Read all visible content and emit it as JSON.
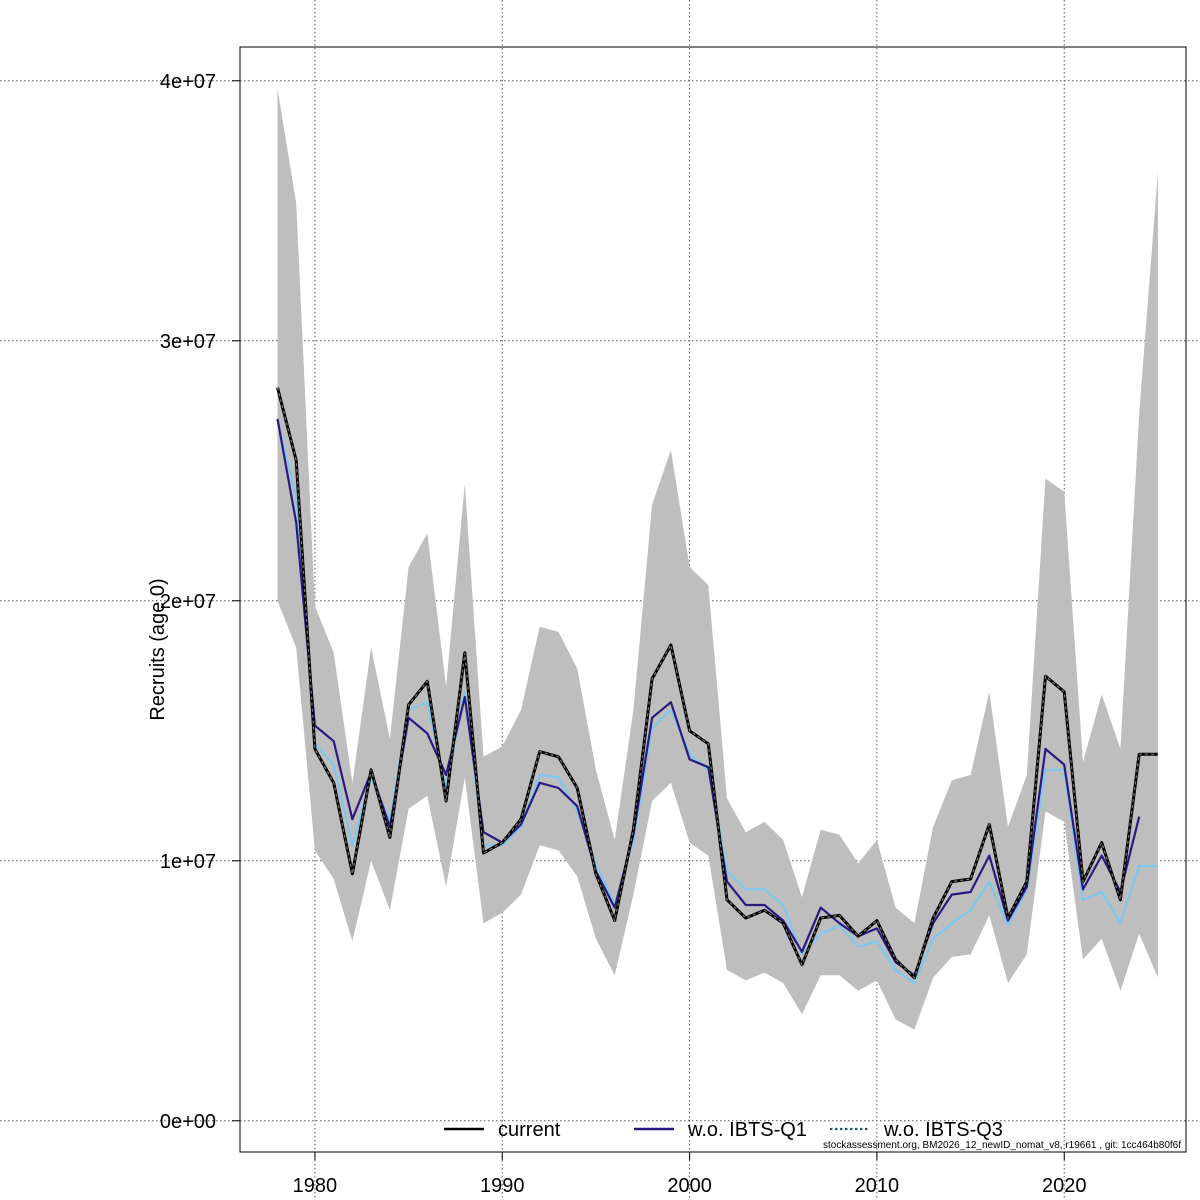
{
  "chart_data": {
    "type": "line",
    "ylabel": "Recruits (age 0)",
    "xlabel": "",
    "xlim": [
      1976,
      2026.5
    ],
    "ylim": [
      -1200000,
      41300000
    ],
    "x_ticks": [
      1980,
      1990,
      2000,
      2010,
      2020
    ],
    "y_ticks": [
      0,
      10000000,
      20000000,
      30000000,
      40000000
    ],
    "y_tick_labels": [
      "0e+00",
      "1e+07",
      "2e+07",
      "3e+07",
      "4e+07"
    ],
    "grid": true,
    "legend_position": "bottom",
    "footnote": "stockassessment.org, BM2026_12_newID_nomat_v8, r19661 , git: 1cc464b80f6f",
    "band": {
      "color": "#bebebe",
      "x": [
        1978,
        1979,
        1980,
        1981,
        1982,
        1983,
        1984,
        1985,
        1986,
        1987,
        1988,
        1989,
        1990,
        1991,
        1992,
        1993,
        1994,
        1995,
        1996,
        1997,
        1998,
        1999,
        2000,
        2001,
        2002,
        2003,
        2004,
        2005,
        2006,
        2007,
        2008,
        2009,
        2010,
        2011,
        2012,
        2013,
        2014,
        2015,
        2016,
        2017,
        2018,
        2019,
        2020,
        2021,
        2022,
        2023,
        2024,
        2025
      ],
      "upper": [
        39700000,
        35300000,
        19800000,
        18000000,
        13000000,
        18200000,
        14700000,
        21300000,
        22600000,
        16700000,
        24500000,
        14000000,
        14400000,
        15800000,
        19000000,
        18800000,
        17400000,
        13500000,
        10800000,
        15800000,
        23700000,
        25800000,
        21300000,
        20600000,
        12400000,
        11100000,
        11500000,
        10800000,
        8600000,
        11200000,
        11000000,
        9900000,
        10800000,
        8200000,
        7600000,
        11300000,
        13100000,
        13300000,
        16500000,
        11300000,
        13300000,
        24700000,
        24200000,
        13800000,
        16400000,
        14300000,
        27200000,
        36500000
      ],
      "lower": [
        20000000,
        18200000,
        10400000,
        9300000,
        6900000,
        10000000,
        8100000,
        12000000,
        12500000,
        9000000,
        13200000,
        7600000,
        8000000,
        8700000,
        10600000,
        10400000,
        9400000,
        7000000,
        5600000,
        8700000,
        12300000,
        13000000,
        10700000,
        10200000,
        5800000,
        5400000,
        5700000,
        5300000,
        4100000,
        5600000,
        5600000,
        5000000,
        5400000,
        3900000,
        3500000,
        5500000,
        6300000,
        6400000,
        7900000,
        5300000,
        6400000,
        11900000,
        11500000,
        6200000,
        7000000,
        5000000,
        7200000,
        5500000
      ]
    },
    "x": [
      1978,
      1979,
      1980,
      1981,
      1982,
      1983,
      1984,
      1985,
      1986,
      1987,
      1988,
      1989,
      1990,
      1991,
      1992,
      1993,
      1994,
      1995,
      1996,
      1997,
      1998,
      1999,
      2000,
      2001,
      2002,
      2003,
      2004,
      2005,
      2006,
      2007,
      2008,
      2009,
      2010,
      2011,
      2012,
      2013,
      2014,
      2015,
      2016,
      2017,
      2018,
      2019,
      2020,
      2021,
      2022,
      2023,
      2024,
      2025
    ],
    "series": [
      {
        "name": "current",
        "color": "#000000",
        "style": "solid",
        "values": [
          28200000,
          25400000,
          14300000,
          13000000,
          9500000,
          13500000,
          10900000,
          16000000,
          16900000,
          12300000,
          18000000,
          10300000,
          10700000,
          11600000,
          14200000,
          14000000,
          12800000,
          9500000,
          7700000,
          11200000,
          17000000,
          18300000,
          15000000,
          14500000,
          8500000,
          7800000,
          8100000,
          7600000,
          6000000,
          7800000,
          7900000,
          7100000,
          7700000,
          6200000,
          5500000,
          7800000,
          9200000,
          9300000,
          11400000,
          7800000,
          9200000,
          17100000,
          16500000,
          9200000,
          10700000,
          8500000,
          14100000,
          14100000
        ]
      },
      {
        "name": "w.o. IBTS-Q1",
        "color": "#2a1a80",
        "style": "solid",
        "values": [
          27000000,
          23000000,
          15200000,
          14600000,
          11600000,
          13400000,
          11300000,
          15500000,
          14900000,
          13300000,
          16300000,
          11100000,
          10700000,
          11400000,
          13000000,
          12800000,
          12100000,
          9600000,
          8200000,
          11000000,
          15500000,
          16100000,
          13900000,
          13600000,
          9200000,
          8300000,
          8300000,
          7700000,
          6500000,
          8200000,
          7600000,
          7100000,
          7400000,
          6100000,
          5600000,
          7600000,
          8700000,
          8800000,
          10200000,
          7700000,
          9000000,
          14300000,
          13700000,
          8900000,
          10200000,
          8800000,
          11700000,
          null
        ]
      },
      {
        "name": "w.o. IBTS-Q3",
        "color": "#7ec8ee",
        "style": "dashed",
        "values": [
          26900000,
          24000000,
          14500000,
          13700000,
          10600000,
          13200000,
          11500000,
          15800000,
          16100000,
          12800000,
          16500000,
          10600000,
          10600000,
          11300000,
          13300000,
          13200000,
          11900000,
          9900000,
          8300000,
          10800000,
          15100000,
          15800000,
          14100000,
          13500000,
          9600000,
          8900000,
          8900000,
          8300000,
          6400000,
          7200000,
          7500000,
          6700000,
          6900000,
          5800000,
          5300000,
          7000000,
          7600000,
          8100000,
          9200000,
          7500000,
          8900000,
          13500000,
          13500000,
          8500000,
          8800000,
          7600000,
          9800000,
          9800000
        ]
      }
    ]
  }
}
